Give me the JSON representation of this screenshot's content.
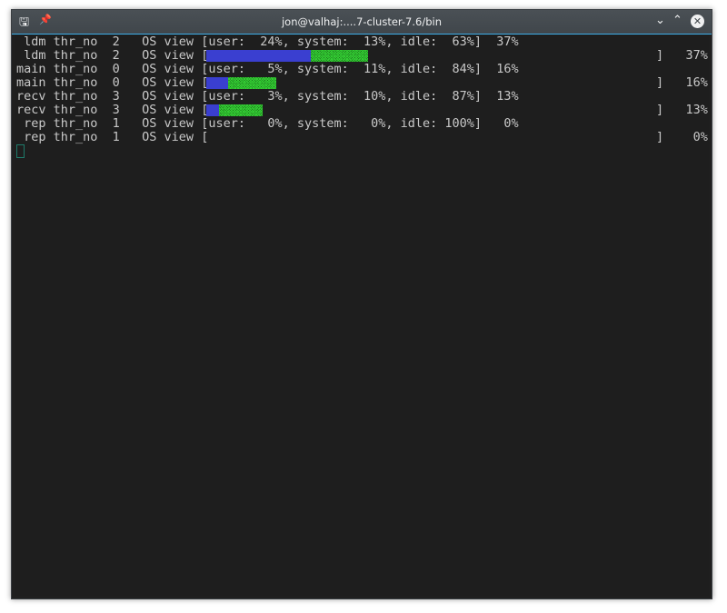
{
  "window": {
    "title": "jon@valhaj:....7-cluster-7.6/bin",
    "icon": "terminal-icon"
  },
  "rows": [
    {
      "text": " ldm thr_no  2   OS view [user:  24%, system:  13%, idle:  63%]  37%"
    },
    {
      "text": " ldm thr_no  2   OS view [",
      "user": 24,
      "system": 13,
      "total": "37%"
    },
    {
      "text": "main thr_no  0   OS view [user:   5%, system:  11%, idle:  84%]  16%"
    },
    {
      "text": "main thr_no  0   OS view [",
      "user": 5,
      "system": 11,
      "total": "16%"
    },
    {
      "text": "recv thr_no  3   OS view [user:   3%, system:  10%, idle:  87%]  13%"
    },
    {
      "text": "recv thr_no  3   OS view [",
      "user": 3,
      "system": 10,
      "total": "13%"
    },
    {
      "text": " rep thr_no  1   OS view [user:   0%, system:   0%, idle: 100%]   0%"
    },
    {
      "text": " rep thr_no  1   OS view [",
      "user": 0,
      "system": 0,
      "total": "0%"
    }
  ],
  "colors": {
    "user_bar": "#3a3fd0",
    "system_bar": "#33cc33",
    "background": "#1e1e1e"
  }
}
